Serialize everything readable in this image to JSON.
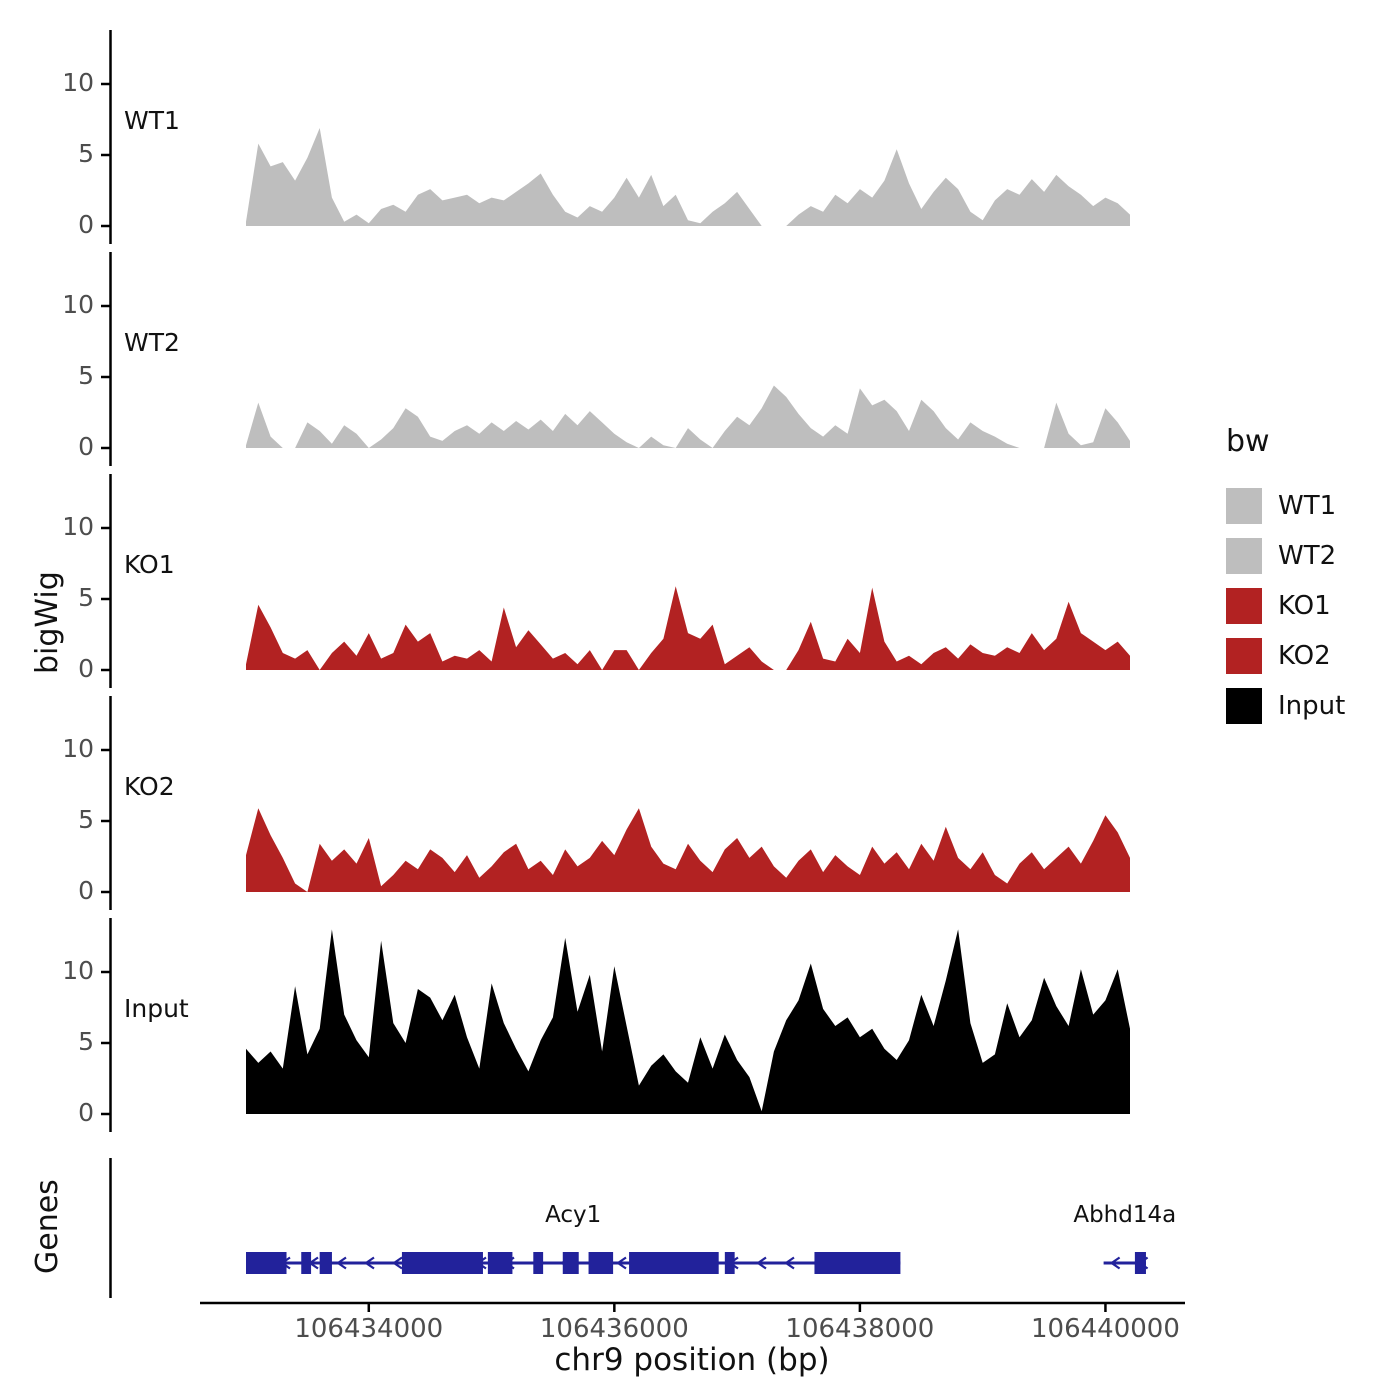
{
  "figure": {
    "ylabel": "bigWig",
    "genes_label": "Genes",
    "xlabel": "chr9 position (bp)"
  },
  "legend": {
    "title": "bw",
    "entries": [
      {
        "label": "WT1",
        "color": "#BEBEBE"
      },
      {
        "label": "WT2",
        "color": "#BEBEBE"
      },
      {
        "label": "KO1",
        "color": "#B22222"
      },
      {
        "label": "KO2",
        "color": "#B22222"
      },
      {
        "label": "Input",
        "color": "#000000"
      }
    ]
  },
  "chart_data": {
    "type": "area",
    "title": "",
    "x_axis": {
      "label": "chr9 position (bp)",
      "ticks": [
        106434000,
        106436000,
        106438000,
        106440000
      ],
      "range": [
        106433000,
        106440200
      ]
    },
    "y_axis": {
      "label": "bigWig",
      "ticks": [
        0,
        5,
        10
      ],
      "ylim": [
        0,
        13.5
      ]
    },
    "x_start": 106433000,
    "x_step": 100,
    "series": [
      {
        "name": "WT1",
        "color": "#BEBEBE",
        "values": [
          0.3,
          5.8,
          4.2,
          4.5,
          3.2,
          4.8,
          6.9,
          2.0,
          0.3,
          0.8,
          0.2,
          1.2,
          1.5,
          1.0,
          2.2,
          2.6,
          1.8,
          2.0,
          2.2,
          1.6,
          2.0,
          1.8,
          2.4,
          3.0,
          3.7,
          2.2,
          1.0,
          0.6,
          1.4,
          1.0,
          2.0,
          3.4,
          2.0,
          3.6,
          1.4,
          2.2,
          0.4,
          0.2,
          1.0,
          1.6,
          2.4,
          1.2,
          0,
          0,
          0,
          0.8,
          1.4,
          1.0,
          2.2,
          1.6,
          2.6,
          2.0,
          3.2,
          5.4,
          3.0,
          1.2,
          2.4,
          3.4,
          2.6,
          1.0,
          0.4,
          1.8,
          2.6,
          2.2,
          3.3,
          2.4,
          3.6,
          2.8,
          2.2,
          1.4,
          2.0,
          1.6,
          0.8
        ]
      },
      {
        "name": "WT2",
        "color": "#BEBEBE",
        "values": [
          0.2,
          3.2,
          0.8,
          0,
          0,
          1.8,
          1.2,
          0.3,
          1.6,
          1.0,
          0,
          0.6,
          1.4,
          2.8,
          2.2,
          0.8,
          0.5,
          1.2,
          1.6,
          1.0,
          1.8,
          1.2,
          1.9,
          1.3,
          2.0,
          1.2,
          2.4,
          1.6,
          2.6,
          1.8,
          1.0,
          0.4,
          0,
          0.8,
          0.2,
          0,
          1.4,
          0.6,
          0,
          1.2,
          2.2,
          1.6,
          2.8,
          4.4,
          3.6,
          2.4,
          1.4,
          0.8,
          1.6,
          1.0,
          4.2,
          3.0,
          3.4,
          2.6,
          1.2,
          3.4,
          2.6,
          1.4,
          0.6,
          1.8,
          1.2,
          0.8,
          0.3,
          0,
          0,
          0,
          3.2,
          1.0,
          0.2,
          0.4,
          2.8,
          1.8,
          0.5
        ]
      },
      {
        "name": "KO1",
        "color": "#B22222",
        "values": [
          0.4,
          4.6,
          3.0,
          1.2,
          0.8,
          1.4,
          0,
          1.2,
          2.0,
          1.0,
          2.6,
          0.8,
          1.2,
          3.2,
          2.0,
          2.6,
          0.6,
          1.0,
          0.8,
          1.4,
          0.6,
          4.4,
          1.6,
          2.8,
          1.8,
          0.8,
          1.2,
          0.4,
          1.4,
          0,
          1.4,
          1.4,
          0,
          1.2,
          2.2,
          5.9,
          2.6,
          2.2,
          3.2,
          0.4,
          1.0,
          1.6,
          0.6,
          0,
          0,
          1.4,
          3.4,
          0.8,
          0.6,
          2.2,
          1.2,
          5.8,
          2.0,
          0.6,
          1.0,
          0.4,
          1.2,
          1.6,
          0.8,
          1.8,
          1.2,
          1.0,
          1.6,
          1.2,
          2.6,
          1.4,
          2.2,
          4.8,
          2.6,
          2.0,
          1.4,
          2.0,
          1.0
        ]
      },
      {
        "name": "KO2",
        "color": "#B22222",
        "values": [
          2.6,
          5.9,
          4.0,
          2.4,
          0.6,
          0,
          3.4,
          2.2,
          3.0,
          2.0,
          3.8,
          0.4,
          1.2,
          2.2,
          1.6,
          3.0,
          2.4,
          1.4,
          2.6,
          1.0,
          1.8,
          2.8,
          3.4,
          1.6,
          2.2,
          1.2,
          3.0,
          1.8,
          2.4,
          3.6,
          2.6,
          4.4,
          5.9,
          3.2,
          2.0,
          1.6,
          3.4,
          2.2,
          1.4,
          3.0,
          3.8,
          2.4,
          3.2,
          1.8,
          1.0,
          2.2,
          3.0,
          1.4,
          2.6,
          1.8,
          1.2,
          3.2,
          2.0,
          2.8,
          1.6,
          3.4,
          2.2,
          4.6,
          2.4,
          1.6,
          2.8,
          1.2,
          0.6,
          2.0,
          2.8,
          1.6,
          2.4,
          3.2,
          2.0,
          3.6,
          5.4,
          4.2,
          2.4
        ]
      },
      {
        "name": "Input",
        "color": "#000000",
        "values": [
          4.6,
          3.6,
          4.4,
          3.2,
          9.0,
          4.2,
          6.0,
          13.0,
          7.0,
          5.2,
          4.0,
          12.2,
          6.4,
          5.0,
          8.8,
          8.2,
          6.6,
          8.4,
          5.4,
          3.2,
          9.2,
          6.4,
          4.6,
          3.0,
          5.2,
          6.8,
          12.4,
          7.2,
          9.8,
          4.4,
          10.4,
          6.2,
          2.0,
          3.4,
          4.2,
          3.0,
          2.2,
          5.4,
          3.2,
          5.6,
          3.8,
          2.6,
          0.2,
          4.4,
          6.6,
          8.0,
          10.6,
          7.4,
          6.2,
          6.8,
          5.4,
          6.0,
          4.6,
          3.8,
          5.2,
          8.4,
          6.2,
          9.4,
          13.0,
          6.4,
          3.6,
          4.2,
          7.8,
          5.4,
          6.6,
          9.6,
          7.6,
          6.2,
          10.2,
          7.0,
          8.0,
          10.2,
          6.0
        ]
      }
    ],
    "genes": [
      {
        "name": "Acy1",
        "strand": "-",
        "start": 106433000,
        "end": 106438330,
        "color": "#22229B",
        "exons": [
          [
            106433000,
            106433330
          ],
          [
            106433450,
            106433530
          ],
          [
            106433600,
            106433700
          ],
          [
            106434270,
            106434930
          ],
          [
            106434970,
            106435170
          ],
          [
            106435340,
            106435420
          ],
          [
            106435580,
            106435710
          ],
          [
            106435790,
            106435990
          ],
          [
            106436120,
            106436850
          ],
          [
            106436900,
            106436980
          ],
          [
            106437630,
            106438330
          ]
        ]
      },
      {
        "name": "Abhd14a",
        "strand": "-",
        "start": 106439985,
        "end": 106440330,
        "color": "#22229B",
        "exons": [
          [
            106440240,
            106440330
          ]
        ]
      }
    ]
  }
}
